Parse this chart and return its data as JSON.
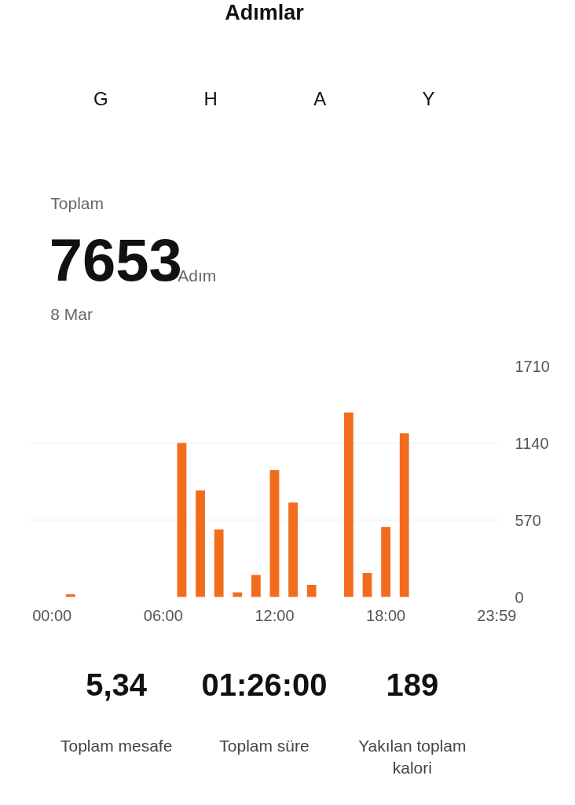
{
  "chart_data": {
    "type": "bar",
    "title": "Adımlar",
    "annotations": [
      "G",
      "H",
      "A",
      "Y",
      "Toplam",
      "7653",
      "Adım",
      "8 Mar",
      "5,34",
      "Toplam mesafe",
      "01:26:00",
      "Toplam süre",
      "189",
      "Yakılan toplam kalori"
    ],
    "x": [
      1,
      7,
      8,
      9,
      10,
      11,
      12,
      13,
      14,
      16,
      17,
      18,
      19
    ],
    "values": [
      20,
      1140,
      790,
      500,
      35,
      165,
      940,
      700,
      90,
      1365,
      178,
      519,
      1211
    ],
    "color": "#f26c1e",
    "xlim": [
      -1.3,
      24.2
    ],
    "xticks": [
      {
        "value": 0,
        "label": "00:00"
      },
      {
        "value": 6,
        "label": "06:00"
      },
      {
        "value": 12,
        "label": "12:00"
      },
      {
        "value": 18,
        "label": "18:00"
      },
      {
        "value": 23.983,
        "label": "23:59"
      }
    ],
    "ylim": [
      0,
      1710
    ],
    "yticks": [
      0,
      570,
      1140,
      1710
    ],
    "grid": "y"
  }
}
